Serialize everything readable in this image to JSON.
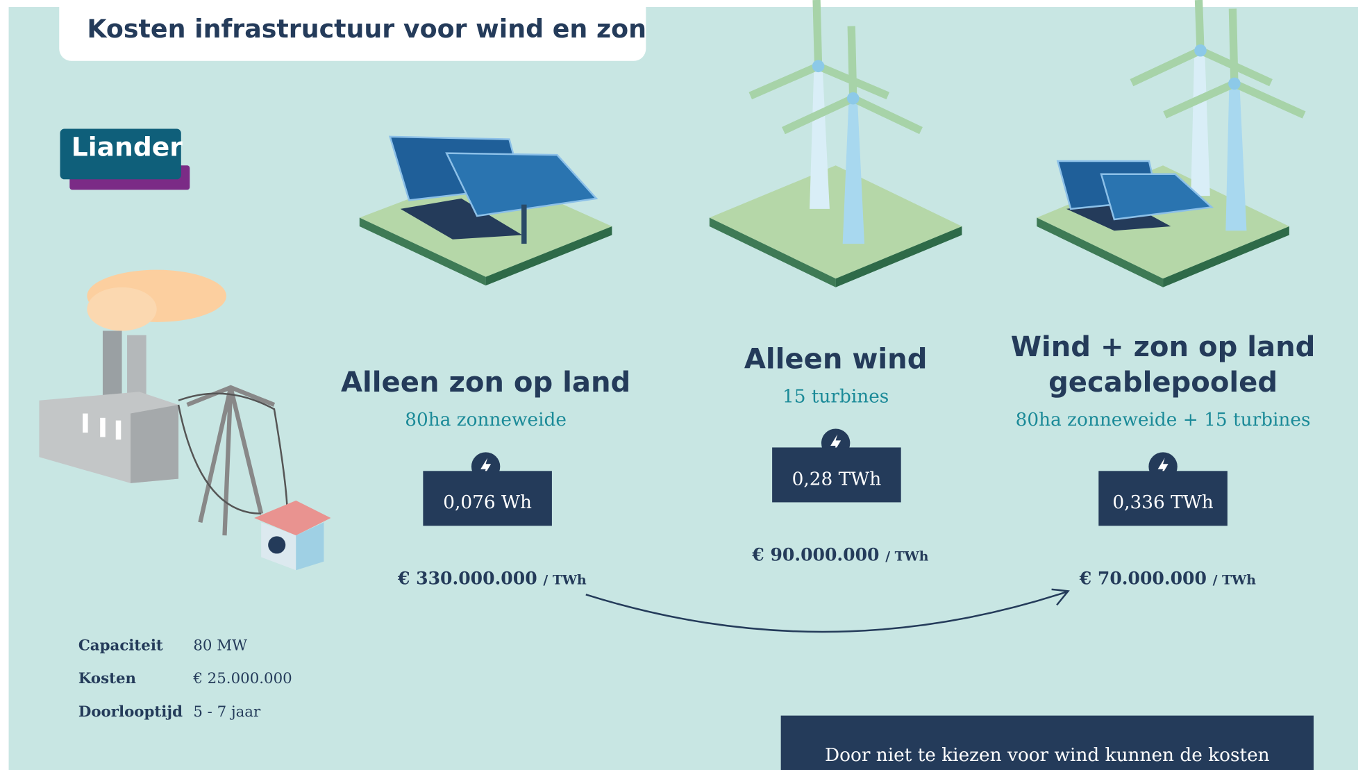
{
  "header": {
    "title": "Kosten infrastructuur voor wind en zon",
    "logo": "Liander"
  },
  "scenarios": [
    {
      "title": "Alleen zon op land",
      "subtitle": "80ha zonneweide",
      "energy": "0,076 Wh",
      "cost": "€ 330.000.000",
      "unit": "/ TWh"
    },
    {
      "title": "Alleen wind",
      "subtitle": "15 turbines",
      "energy": "0,28 TWh",
      "cost": "€ 90.000.000",
      "unit": "/ TWh"
    },
    {
      "title": "Wind + zon op land gecablepooled",
      "subtitle": "80ha zonneweide + 15 turbines",
      "energy": "0,336 TWh",
      "cost": "€ 70.000.000",
      "unit": "/ TWh"
    }
  ],
  "facts": [
    {
      "label": "Capaciteit",
      "value": "80 MW"
    },
    {
      "label": "Kosten",
      "value": "€ 25.000.000"
    },
    {
      "label": "Doorlooptijd",
      "value": "5 - 7 jaar"
    }
  ],
  "note": "Door niet te kiezen voor wind kunnen de kosten"
}
